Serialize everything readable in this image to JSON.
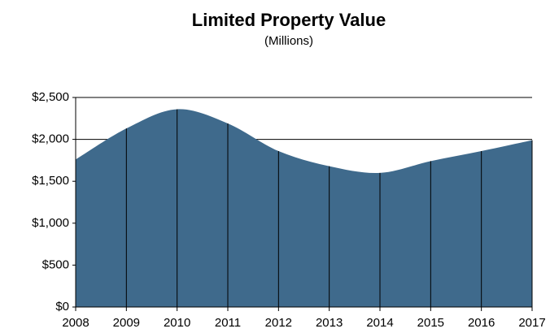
{
  "chart_data": {
    "type": "area",
    "title": "Limited Property Value",
    "subtitle": "(Millions)",
    "x": [
      2008,
      2009,
      2010,
      2011,
      2012,
      2013,
      2014,
      2015,
      2016,
      2017
    ],
    "values": [
      1760,
      2130,
      2360,
      2190,
      1860,
      1680,
      1600,
      1740,
      1860,
      1990
    ],
    "color": "#3f6a8c",
    "xlim": [
      2008,
      2017
    ],
    "xticks": [
      2008,
      2009,
      2010,
      2011,
      2012,
      2013,
      2014,
      2015,
      2016,
      2017
    ],
    "ylim": [
      0,
      2500
    ],
    "yticks": [
      {
        "value": 0,
        "label": "$0"
      },
      {
        "value": 500,
        "label": "$500"
      },
      {
        "value": 1000,
        "label": "$1,000"
      },
      {
        "value": 1500,
        "label": "$1,500"
      },
      {
        "value": 2000,
        "label": "$2,000"
      },
      {
        "value": 2500,
        "label": "$2,500"
      }
    ],
    "grid": true
  }
}
